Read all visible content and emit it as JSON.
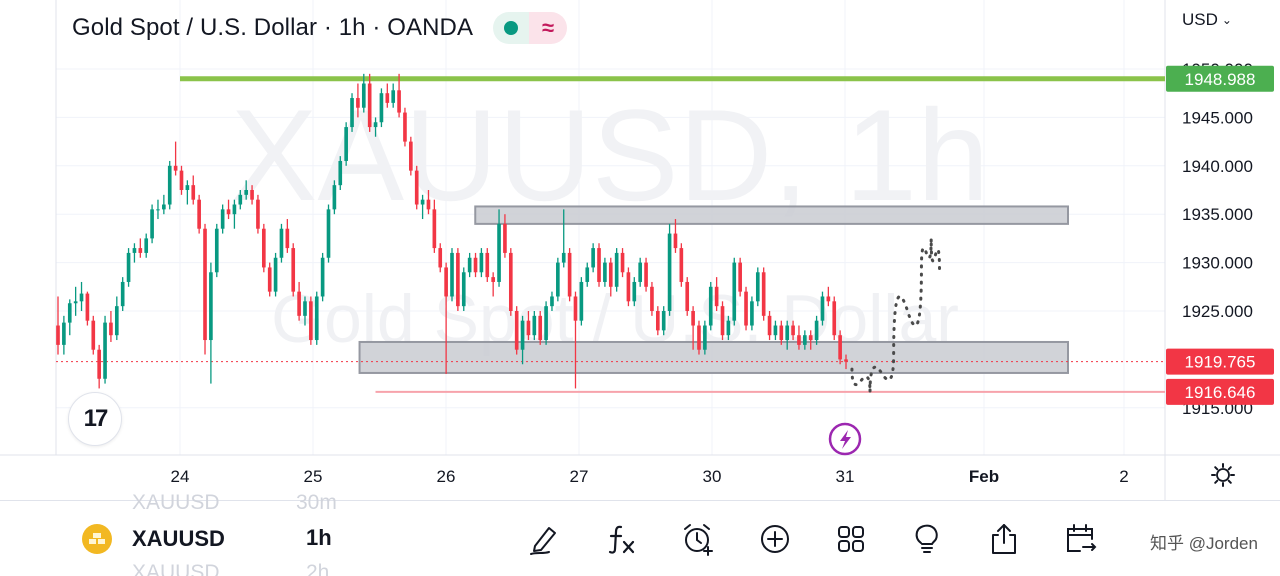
{
  "header": {
    "title": "Gold Spot / U.S. Dollar · 1h · OANDA",
    "status_dot_color": "#089981",
    "status_wave_icon": "wave-icon",
    "currency": "USD"
  },
  "colors": {
    "bull": "#089981",
    "bear": "#f23645",
    "resistance_line": "#8bc34a",
    "support_line": "#f23645",
    "zone_fill": "#c9cbd1",
    "zone_stroke": "#9598a1"
  },
  "chart_data": {
    "type": "candlestick",
    "symbol": "XAUUSD",
    "interval": "1h",
    "watermark": "XAUUSD, 1h",
    "watermark_sub": "Gold Spot / U.S. Dollar",
    "y_ticks": [
      1950.0,
      1945.0,
      1940.0,
      1935.0,
      1930.0,
      1925.0,
      1915.0
    ],
    "y_tick_labels": [
      "1950.000",
      "1945.000",
      "1940.000",
      "1935.000",
      "1930.000",
      "1925.000",
      "1915.000"
    ],
    "ylim": [
      1911.0,
      1955.0
    ],
    "x_tick_labels": [
      "24",
      "25",
      "26",
      "27",
      "30",
      "31",
      "Feb",
      "2"
    ],
    "x_tick_bold": [
      false,
      false,
      false,
      false,
      false,
      false,
      true,
      false
    ],
    "grid": true,
    "price_labels": [
      {
        "name": "resistance",
        "value": 1948.988,
        "label": "1948.988",
        "color": "#4caf50"
      },
      {
        "name": "last-price",
        "value": 1919.765,
        "label": "1919.765",
        "color": "#f23645"
      },
      {
        "name": "support",
        "value": 1916.646,
        "label": "1916.646",
        "color": "#f23645"
      }
    ],
    "horizontal_lines": [
      {
        "name": "resistance-line",
        "value": 1948.988,
        "color": "#8bc34a",
        "from_day": 0.0
      },
      {
        "name": "support-line",
        "value": 1916.646,
        "color": "#f7a3ab",
        "from_day": 1.47
      }
    ],
    "zones": [
      {
        "name": "upper-zone",
        "top": 1935.8,
        "bottom": 1934.0,
        "from_day": 2.22,
        "to_day": 6.6
      },
      {
        "name": "lower-zone",
        "top": 1921.8,
        "bottom": 1918.6,
        "from_day": 1.35,
        "to_day": 6.6
      }
    ],
    "projection": [
      [
        5.05,
        1919.0
      ],
      [
        5.18,
        1916.6
      ],
      [
        5.35,
        1920.5
      ],
      [
        5.55,
        1929.5
      ],
      [
        5.62,
        1932.5
      ],
      [
        5.68,
        1929.0
      ]
    ],
    "event_marker": {
      "day": 5.0,
      "value": 1912.5,
      "icon": "lightning-icon",
      "color": "#9c27b0"
    },
    "candles": [
      [
        1923.5,
        1926.5,
        1920.5,
        1921.5
      ],
      [
        1921.5,
        1924.5,
        1920.5,
        1923.8
      ],
      [
        1923.8,
        1926.2,
        1922.5,
        1925.8
      ],
      [
        1925.8,
        1927.5,
        1924.5,
        1926.0
      ],
      [
        1926.0,
        1928.0,
        1925.0,
        1926.8
      ],
      [
        1926.8,
        1927.0,
        1923.5,
        1924.0
      ],
      [
        1924.0,
        1924.5,
        1920.5,
        1921.0
      ],
      [
        1921.0,
        1921.5,
        1917.0,
        1918.0
      ],
      [
        1918.0,
        1924.5,
        1917.5,
        1923.8
      ],
      [
        1923.8,
        1925.0,
        1921.8,
        1922.5
      ],
      [
        1922.5,
        1926.5,
        1922.0,
        1925.5
      ],
      [
        1925.5,
        1928.5,
        1925.0,
        1928.0
      ],
      [
        1928.0,
        1931.5,
        1927.5,
        1931.0
      ],
      [
        1931.0,
        1932.0,
        1930.0,
        1931.5
      ],
      [
        1931.5,
        1932.5,
        1930.5,
        1931.0
      ],
      [
        1931.0,
        1933.0,
        1930.5,
        1932.5
      ],
      [
        1932.5,
        1936.0,
        1932.0,
        1935.5
      ],
      [
        1935.5,
        1936.5,
        1934.5,
        1935.5
      ],
      [
        1935.5,
        1937.0,
        1935.0,
        1936.0
      ],
      [
        1936.0,
        1940.5,
        1935.5,
        1940.0
      ],
      [
        1940.0,
        1942.5,
        1939.0,
        1939.5
      ],
      [
        1939.5,
        1940.0,
        1937.0,
        1937.5
      ],
      [
        1937.5,
        1938.5,
        1936.0,
        1938.0
      ],
      [
        1938.0,
        1939.0,
        1936.0,
        1936.5
      ],
      [
        1936.5,
        1937.0,
        1933.0,
        1933.5
      ],
      [
        1933.5,
        1934.0,
        1920.5,
        1922.0
      ],
      [
        1922.0,
        1930.0,
        1917.5,
        1929.0
      ],
      [
        1929.0,
        1934.0,
        1928.5,
        1933.5
      ],
      [
        1933.5,
        1936.0,
        1933.0,
        1935.5
      ],
      [
        1935.5,
        1936.5,
        1934.5,
        1935.0
      ],
      [
        1935.0,
        1936.5,
        1933.5,
        1936.0
      ],
      [
        1936.0,
        1937.5,
        1935.5,
        1937.0
      ],
      [
        1937.0,
        1938.5,
        1936.5,
        1937.5
      ],
      [
        1937.5,
        1938.0,
        1936.0,
        1936.5
      ],
      [
        1936.5,
        1937.0,
        1933.0,
        1933.5
      ],
      [
        1933.5,
        1934.0,
        1929.0,
        1929.5
      ],
      [
        1929.5,
        1930.0,
        1926.5,
        1927.0
      ],
      [
        1927.0,
        1931.0,
        1926.5,
        1930.5
      ],
      [
        1930.5,
        1934.0,
        1930.0,
        1933.5
      ],
      [
        1933.5,
        1934.5,
        1931.0,
        1931.5
      ],
      [
        1931.5,
        1932.0,
        1926.5,
        1927.0
      ],
      [
        1927.0,
        1928.0,
        1924.0,
        1924.5
      ],
      [
        1924.5,
        1926.5,
        1923.5,
        1926.0
      ],
      [
        1926.0,
        1926.5,
        1921.5,
        1922.0
      ],
      [
        1922.0,
        1927.0,
        1921.5,
        1926.5
      ],
      [
        1926.5,
        1931.0,
        1926.0,
        1930.5
      ],
      [
        1930.5,
        1936.0,
        1930.0,
        1935.5
      ],
      [
        1935.5,
        1938.5,
        1935.0,
        1938.0
      ],
      [
        1938.0,
        1941.0,
        1937.5,
        1940.5
      ],
      [
        1940.5,
        1944.5,
        1940.0,
        1944.0
      ],
      [
        1944.0,
        1947.5,
        1943.5,
        1947.0
      ],
      [
        1947.0,
        1948.5,
        1945.0,
        1946.0
      ],
      [
        1946.0,
        1949.5,
        1945.5,
        1948.5
      ],
      [
        1948.5,
        1949.5,
        1943.5,
        1944.0
      ],
      [
        1944.0,
        1945.0,
        1943.0,
        1944.5
      ],
      [
        1944.5,
        1948.0,
        1944.0,
        1947.5
      ],
      [
        1947.5,
        1948.5,
        1946.0,
        1946.5
      ],
      [
        1946.5,
        1948.5,
        1946.0,
        1947.8
      ],
      [
        1947.8,
        1949.5,
        1945.0,
        1945.5
      ],
      [
        1945.5,
        1946.0,
        1942.0,
        1942.5
      ],
      [
        1942.5,
        1943.0,
        1939.0,
        1939.5
      ],
      [
        1939.5,
        1940.0,
        1935.5,
        1936.0
      ],
      [
        1936.0,
        1937.0,
        1934.5,
        1936.5
      ],
      [
        1936.5,
        1937.5,
        1935.0,
        1935.5
      ],
      [
        1935.5,
        1936.5,
        1931.0,
        1931.5
      ],
      [
        1931.5,
        1932.0,
        1929.0,
        1929.5
      ],
      [
        1929.5,
        1930.0,
        1918.5,
        1926.5
      ],
      [
        1926.5,
        1931.5,
        1926.0,
        1931.0
      ],
      [
        1931.0,
        1931.5,
        1925.0,
        1925.5
      ],
      [
        1925.5,
        1929.5,
        1925.0,
        1929.0
      ],
      [
        1929.0,
        1931.0,
        1928.5,
        1930.5
      ],
      [
        1930.5,
        1931.0,
        1928.5,
        1929.0
      ],
      [
        1929.0,
        1931.5,
        1928.5,
        1931.0
      ],
      [
        1931.0,
        1931.5,
        1928.0,
        1928.5
      ],
      [
        1928.5,
        1929.0,
        1926.5,
        1928.0
      ],
      [
        1928.0,
        1935.5,
        1927.5,
        1934.0
      ],
      [
        1934.0,
        1935.0,
        1930.5,
        1931.0
      ],
      [
        1931.0,
        1931.5,
        1924.5,
        1925.0
      ],
      [
        1925.0,
        1925.5,
        1920.5,
        1921.0
      ],
      [
        1921.0,
        1924.5,
        1919.5,
        1924.0
      ],
      [
        1924.0,
        1925.0,
        1922.0,
        1922.5
      ],
      [
        1922.5,
        1925.0,
        1922.0,
        1924.5
      ],
      [
        1924.5,
        1925.0,
        1921.5,
        1922.0
      ],
      [
        1922.0,
        1926.0,
        1921.5,
        1925.5
      ],
      [
        1925.5,
        1927.0,
        1925.0,
        1926.5
      ],
      [
        1926.5,
        1930.5,
        1926.0,
        1930.0
      ],
      [
        1930.0,
        1935.5,
        1929.5,
        1931.0
      ],
      [
        1931.0,
        1931.5,
        1926.0,
        1926.5
      ],
      [
        1926.5,
        1927.0,
        1917.0,
        1924.0
      ],
      [
        1924.0,
        1928.5,
        1923.5,
        1928.0
      ],
      [
        1928.0,
        1930.0,
        1927.5,
        1929.5
      ],
      [
        1929.5,
        1932.0,
        1929.0,
        1931.5
      ],
      [
        1931.5,
        1932.0,
        1927.5,
        1928.0
      ],
      [
        1928.0,
        1930.5,
        1927.5,
        1930.0
      ],
      [
        1930.0,
        1930.5,
        1926.5,
        1927.5
      ],
      [
        1927.5,
        1931.5,
        1927.0,
        1931.0
      ],
      [
        1931.0,
        1931.5,
        1928.5,
        1929.0
      ],
      [
        1929.0,
        1929.5,
        1925.5,
        1926.0
      ],
      [
        1926.0,
        1928.5,
        1925.5,
        1928.0
      ],
      [
        1928.0,
        1930.5,
        1927.5,
        1930.0
      ],
      [
        1930.0,
        1930.5,
        1927.0,
        1927.5
      ],
      [
        1927.5,
        1928.0,
        1924.5,
        1925.0
      ],
      [
        1925.0,
        1925.5,
        1922.5,
        1923.0
      ],
      [
        1923.0,
        1925.5,
        1922.5,
        1925.0
      ],
      [
        1925.0,
        1934.0,
        1924.5,
        1933.0
      ],
      [
        1933.0,
        1934.5,
        1931.0,
        1931.5
      ],
      [
        1931.5,
        1932.0,
        1927.5,
        1928.0
      ],
      [
        1928.0,
        1928.5,
        1924.5,
        1925.0
      ],
      [
        1925.0,
        1925.5,
        1921.0,
        1923.5
      ],
      [
        1923.5,
        1924.0,
        1920.5,
        1921.0
      ],
      [
        1921.0,
        1924.0,
        1920.5,
        1923.5
      ],
      [
        1923.5,
        1928.0,
        1923.0,
        1927.5
      ],
      [
        1927.5,
        1928.5,
        1925.0,
        1925.5
      ],
      [
        1925.5,
        1926.0,
        1922.0,
        1922.5
      ],
      [
        1922.5,
        1924.5,
        1922.0,
        1924.0
      ],
      [
        1924.0,
        1930.5,
        1923.5,
        1930.0
      ],
      [
        1930.0,
        1930.5,
        1926.5,
        1927.0
      ],
      [
        1927.0,
        1927.5,
        1923.0,
        1923.5
      ],
      [
        1923.5,
        1926.5,
        1923.0,
        1926.0
      ],
      [
        1926.0,
        1929.5,
        1925.5,
        1929.0
      ],
      [
        1929.0,
        1929.5,
        1924.0,
        1924.5
      ],
      [
        1924.5,
        1925.0,
        1922.0,
        1922.5
      ],
      [
        1922.5,
        1924.0,
        1922.0,
        1923.5
      ],
      [
        1923.5,
        1924.0,
        1921.5,
        1922.0
      ],
      [
        1922.0,
        1924.0,
        1921.0,
        1923.5
      ],
      [
        1923.5,
        1924.0,
        1922.0,
        1922.5
      ],
      [
        1922.5,
        1923.5,
        1921.0,
        1921.5
      ],
      [
        1921.5,
        1923.0,
        1921.0,
        1922.5
      ],
      [
        1922.5,
        1923.0,
        1921.0,
        1922.0
      ],
      [
        1922.0,
        1924.5,
        1921.5,
        1924.0
      ],
      [
        1924.0,
        1927.0,
        1923.5,
        1926.5
      ],
      [
        1926.5,
        1927.5,
        1925.5,
        1926.0
      ],
      [
        1926.0,
        1926.5,
        1922.0,
        1922.5
      ],
      [
        1922.5,
        1923.0,
        1919.5,
        1920.0
      ],
      [
        1920.0,
        1920.5,
        1919.0,
        1919.765
      ]
    ]
  },
  "bottom_bar": {
    "symbol": "XAUUSD",
    "interval": "1h",
    "ghost_symbol_above": "XAUUSD",
    "ghost_interval_above": "30m",
    "ghost_symbol_below": "XAUUSD",
    "ghost_interval_below": "2h",
    "symbol_icon": "gold-bars-icon",
    "tools": [
      "pen-icon",
      "fx-icon",
      "alarm-add-icon",
      "plus-circle-icon",
      "grid-icon",
      "lightbulb-icon",
      "share-icon",
      "calendar-range-icon"
    ],
    "watermark_text": "知乎 @Jorden"
  }
}
